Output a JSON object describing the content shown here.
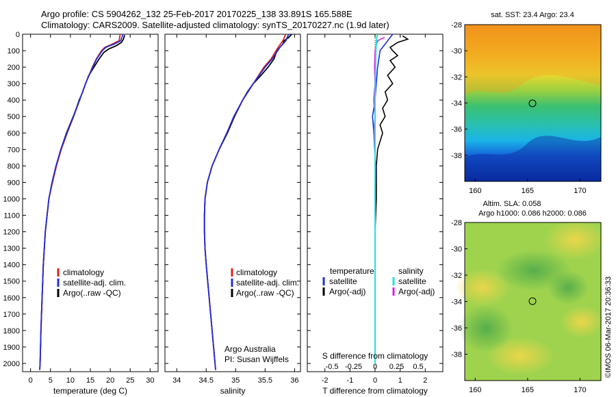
{
  "header": {
    "title_line1": "Argo profile: CS 5904262_132 25-Feb-2017 20170225_138 33.891S 165.588E",
    "title_line2": "Climatology: CARS2009. Satellite-adjusted climatology: synTS_20170227.nc (1.9d later)"
  },
  "colors": {
    "climatology": "#e02020",
    "satellite": "#1f2fd8",
    "argo": "#000000",
    "sat_salinity": "#22e0e0",
    "argo_salinity": "#e020e0"
  },
  "chart_data": [
    {
      "type": "line",
      "panel": "temperature",
      "xlabel": "temperature (deg C)",
      "xlim": [
        -2,
        32
      ],
      "ylim": [
        2050,
        0
      ],
      "xticks": [
        "0",
        "5",
        "10",
        "15",
        "20",
        "25",
        "30"
      ],
      "yticks": [
        "0",
        "100",
        "200",
        "300",
        "400",
        "500",
        "600",
        "700",
        "800",
        "900",
        "1000",
        "1100",
        "1200",
        "1300",
        "1400",
        "1500",
        "1600",
        "1700",
        "1800",
        "1900",
        "2000"
      ],
      "legend": [
        "climatology",
        "satellite-adj. clim.",
        "Argo(..raw -QC)"
      ],
      "series": [
        {
          "name": "climatology",
          "y": [
            0,
            40,
            60,
            80,
            100,
            150,
            200,
            300,
            400,
            500,
            600,
            700,
            800,
            900,
            1000,
            1200,
            1400,
            1600,
            1800,
            2000,
            2040
          ],
          "x": [
            22.5,
            22.2,
            20.5,
            18.6,
            17.8,
            16.5,
            15.5,
            13.8,
            12.3,
            10.8,
            9.2,
            7.7,
            6.5,
            5.5,
            4.6,
            3.7,
            3.2,
            2.9,
            2.6,
            2.4,
            2.3
          ]
        },
        {
          "name": "satellite-adj. clim.",
          "y": [
            0,
            40,
            60,
            80,
            100,
            150,
            200,
            300,
            400,
            500,
            600,
            700,
            800,
            900,
            1000,
            1200,
            1400,
            1600,
            1800,
            2000,
            2040
          ],
          "x": [
            23.2,
            22.6,
            21.0,
            18.9,
            18.0,
            16.6,
            15.6,
            13.8,
            12.3,
            10.8,
            9.1,
            7.6,
            6.4,
            5.4,
            4.6,
            3.7,
            3.2,
            2.9,
            2.6,
            2.4,
            2.3
          ]
        },
        {
          "name": "Argo(..raw -QC)",
          "y": [
            5,
            30,
            50,
            70,
            90,
            110,
            150,
            200,
            250,
            300,
            350,
            400,
            450,
            500,
            600,
            700,
            800,
            900,
            1000,
            1200,
            1400,
            1600,
            1800,
            2000
          ],
          "x": [
            23.6,
            23.3,
            22.8,
            21.5,
            19.6,
            18.4,
            17.2,
            15.9,
            14.6,
            13.8,
            13.1,
            12.2,
            11.5,
            10.7,
            9.0,
            7.6,
            6.4,
            5.4,
            4.6,
            3.7,
            3.2,
            2.9,
            2.6,
            2.4
          ]
        }
      ]
    },
    {
      "type": "line",
      "panel": "salinity",
      "xlabel": "salinity",
      "xlim": [
        33.8,
        36.1
      ],
      "ylim": [
        2050,
        0
      ],
      "xticks": [
        "34",
        "34.5",
        "35",
        "35.5",
        "36"
      ],
      "legend": [
        "climatology",
        "satellite-adj. clim.",
        "Argo(..raw -QC)"
      ],
      "annotation_line1": "Argo Australia",
      "annotation_line2": "PI: Susan Wijffels",
      "series": [
        {
          "name": "climatology",
          "y": [
            0,
            40,
            80,
            150,
            200,
            300,
            400,
            500,
            600,
            700,
            800,
            900,
            1000,
            1100,
            1200,
            1300,
            1400,
            1600,
            1800,
            2000,
            2040
          ],
          "x": [
            35.85,
            35.8,
            35.72,
            35.6,
            35.48,
            35.3,
            35.12,
            34.97,
            34.85,
            34.72,
            34.6,
            34.52,
            34.48,
            34.47,
            34.47,
            34.48,
            34.5,
            34.55,
            34.6,
            34.65,
            34.66
          ]
        },
        {
          "name": "satellite-adj. clim.",
          "y": [
            0,
            40,
            80,
            150,
            200,
            300,
            400,
            500,
            600,
            700,
            800,
            900,
            1000,
            1100,
            1200,
            1300,
            1400,
            1600,
            1800,
            2000,
            2040
          ],
          "x": [
            35.9,
            35.85,
            35.75,
            35.62,
            35.5,
            35.3,
            35.12,
            34.97,
            34.85,
            34.72,
            34.6,
            34.52,
            34.48,
            34.47,
            34.47,
            34.48,
            34.5,
            34.55,
            34.6,
            34.65,
            34.66
          ]
        },
        {
          "name": "Argo(..raw -QC)",
          "y": [
            0,
            20,
            40,
            60,
            80,
            100,
            150,
            200,
            250,
            300,
            350,
            400,
            500,
            600,
            700,
            800,
            900,
            1000,
            1100,
            1200,
            1300,
            1400,
            1600,
            1800,
            2000
          ],
          "x": [
            35.95,
            35.9,
            35.82,
            35.8,
            35.75,
            35.7,
            35.65,
            35.55,
            35.43,
            35.3,
            35.2,
            35.12,
            34.98,
            34.86,
            34.72,
            34.6,
            34.52,
            34.48,
            34.47,
            34.47,
            34.48,
            34.5,
            34.55,
            34.6,
            34.65
          ]
        }
      ]
    },
    {
      "type": "line",
      "panel": "difference",
      "xlabel_top": "S difference from climatology",
      "xticks_top": [
        "-0.5",
        "-0.25",
        "0",
        "0.25",
        "0.5"
      ],
      "xlabel": "T difference from climatology",
      "xlim": [
        -2.7,
        2.7
      ],
      "xticks": [
        "-2",
        "-1",
        "0",
        "1",
        "2"
      ],
      "legend": {
        "temperature_title": "temperature",
        "salinity_title": "salinity",
        "items": [
          "satellite",
          "Argo(-adj)",
          "satellite",
          "Argo(-adj)"
        ]
      },
      "series": [
        {
          "name": "temperature satellite",
          "y": [
            0,
            60,
            100,
            200,
            300,
            400,
            500,
            600,
            800,
            1000,
            1500,
            2000
          ],
          "x": [
            0.7,
            0.4,
            0.2,
            0.1,
            0.05,
            0.0,
            -0.1,
            -0.05,
            0.02,
            0.0,
            0.0,
            0.0
          ]
        },
        {
          "name": "temperature Argo(-adj)",
          "y": [
            10,
            30,
            50,
            80,
            100,
            130,
            160,
            200,
            250,
            300,
            350,
            400,
            450,
            500,
            550,
            600,
            700,
            800,
            1000,
            1200,
            1500,
            2000
          ],
          "x": [
            1.1,
            1.3,
            0.9,
            0.6,
            0.7,
            0.9,
            0.6,
            0.8,
            0.5,
            0.7,
            0.4,
            0.5,
            0.3,
            0.4,
            0.2,
            0.3,
            0.1,
            0.05,
            0.05,
            0.0,
            0.0,
            0.0
          ]
        },
        {
          "name": "salinity satellite",
          "y": [
            0,
            40,
            100,
            200,
            400,
            600,
            800,
            1000,
            1500,
            2000
          ],
          "x": [
            0.08,
            0.05,
            0.03,
            0.02,
            0.0,
            0.0,
            0.0,
            0.0,
            0.0,
            0.0
          ]
        },
        {
          "name": "salinity Argo(-adj)",
          "y": [
            20,
            30,
            40,
            60,
            100,
            200,
            300,
            400,
            500,
            600,
            700,
            800,
            1000,
            1500,
            2000
          ],
          "x": [
            0.35,
            0.2,
            0.1,
            0.05,
            0.0,
            -0.02,
            0.0,
            -0.05,
            0.0,
            -0.05,
            0.0,
            0.0,
            0.0,
            0.0,
            0.0
          ]
        }
      ]
    },
    {
      "type": "heatmap",
      "panel": "sst_map",
      "title": "sat. SST: 23.4 Argo: 23.4",
      "xticks": [
        "160",
        "165",
        "170"
      ],
      "yticks": [
        "-28",
        "-30",
        "-32",
        "-34",
        "-36",
        "-38"
      ],
      "xlim": [
        159,
        172
      ],
      "ylim": [
        -40,
        -28
      ],
      "marker": {
        "lon": 165.588,
        "lat": -33.891
      }
    },
    {
      "type": "heatmap",
      "panel": "sla_map",
      "title_line1": "Altim. SLA: 0.058",
      "title_line2": "Argo h1000: 0.086 h2000: 0.086",
      "xticks": [
        "160",
        "165",
        "170"
      ],
      "yticks": [
        "-28",
        "-30",
        "-32",
        "-34",
        "-36",
        "-38"
      ],
      "xlim": [
        159,
        172
      ],
      "ylim": [
        -40,
        -28
      ],
      "marker": {
        "lon": 165.588,
        "lat": -33.891
      }
    }
  ],
  "credit": "©IMOS 06-Mar-2017 20:36:33"
}
